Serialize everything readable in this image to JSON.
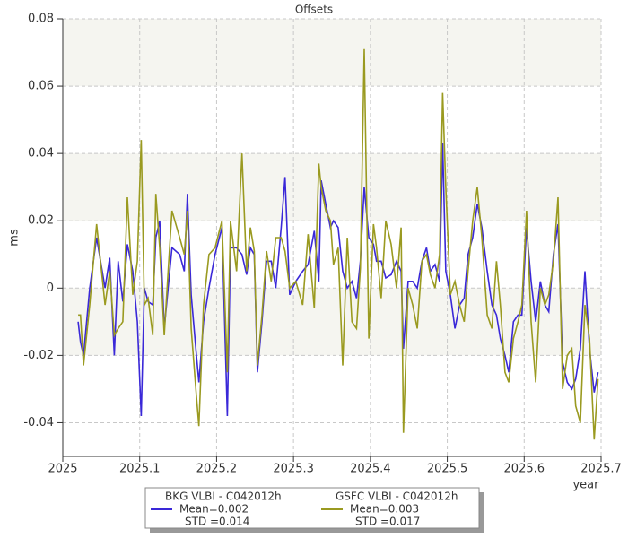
{
  "chart_data": {
    "type": "line",
    "title": "Offsets",
    "y_label": "ms",
    "x_label": "year",
    "xlim": [
      2025,
      2025.7
    ],
    "xticks": [
      2025,
      2025.1,
      2025.2,
      2025.3,
      2025.4,
      2025.5,
      2025.6,
      2025.7
    ],
    "ylim": [
      -0.05,
      0.08
    ],
    "yticks": [
      -0.04,
      -0.02,
      0,
      0.02,
      0.04,
      0.06,
      0.08
    ],
    "grid": true,
    "x": [
      2025.02,
      2025.023,
      2025.027,
      2025.035,
      2025.044,
      2025.055,
      2025.061,
      2025.067,
      2025.072,
      2025.078,
      2025.084,
      2025.091,
      2025.097,
      2025.102,
      2025.106,
      2025.111,
      2025.117,
      2025.121,
      2025.126,
      2025.132,
      2025.137,
      2025.142,
      2025.152,
      2025.158,
      2025.162,
      2025.167,
      2025.173,
      2025.177,
      2025.183,
      2025.19,
      2025.198,
      2025.207,
      2025.214,
      2025.218,
      2025.226,
      2025.233,
      2025.239,
      2025.244,
      2025.249,
      2025.253,
      2025.259,
      2025.265,
      2025.271,
      2025.277,
      2025.284,
      2025.289,
      2025.295,
      2025.303,
      2025.312,
      2025.319,
      2025.327,
      2025.333,
      2025.336,
      2025.342,
      2025.348,
      2025.352,
      2025.358,
      2025.364,
      2025.37,
      2025.376,
      2025.382,
      2025.387,
      2025.392,
      2025.398,
      2025.404,
      2025.408,
      2025.414,
      2025.42,
      2025.427,
      2025.434,
      2025.44,
      2025.443,
      2025.449,
      2025.455,
      2025.461,
      2025.467,
      2025.473,
      2025.478,
      2025.484,
      2025.49,
      2025.494,
      2025.498,
      2025.504,
      2025.51,
      2025.516,
      2025.522,
      2025.527,
      2025.533,
      2025.539,
      2025.545,
      2025.552,
      2025.558,
      2025.564,
      2025.569,
      2025.575,
      2025.58,
      2025.586,
      2025.592,
      2025.597,
      2025.603,
      2025.609,
      2025.615,
      2025.621,
      2025.627,
      2025.632,
      2025.638,
      2025.644,
      2025.65,
      2025.656,
      2025.662,
      2025.667,
      2025.673,
      2025.679,
      2025.685,
      2025.691,
      2025.696
    ],
    "series": [
      {
        "name": "BKG VLBI - C042012h",
        "stats": [
          "Mean=0.002",
          "STD =0.014"
        ],
        "color": "#3a28d8",
        "values": [
          -0.01,
          -0.016,
          -0.02,
          0.0,
          0.015,
          0.0,
          0.009,
          -0.02,
          0.008,
          -0.004,
          0.013,
          0.005,
          -0.01,
          -0.038,
          0.0,
          -0.004,
          -0.005,
          0.015,
          0.02,
          -0.012,
          0.0,
          0.012,
          0.01,
          0.005,
          0.028,
          -0.002,
          -0.018,
          -0.028,
          -0.01,
          0.0,
          0.01,
          0.018,
          -0.038,
          0.012,
          0.012,
          0.01,
          0.004,
          0.012,
          0.01,
          -0.025,
          -0.01,
          0.008,
          0.008,
          0.0,
          0.018,
          0.033,
          -0.002,
          0.002,
          0.005,
          0.007,
          0.017,
          0.002,
          0.032,
          0.025,
          0.018,
          0.02,
          0.018,
          0.005,
          0.0,
          0.002,
          -0.003,
          0.008,
          0.03,
          0.015,
          0.013,
          0.008,
          0.008,
          0.003,
          0.004,
          0.008,
          0.005,
          -0.018,
          0.002,
          0.002,
          0.0,
          0.008,
          0.012,
          0.005,
          0.007,
          0.002,
          0.043,
          0.005,
          -0.002,
          -0.012,
          -0.005,
          -0.003,
          0.01,
          0.015,
          0.025,
          0.018,
          0.005,
          -0.005,
          -0.008,
          -0.015,
          -0.02,
          -0.025,
          -0.01,
          -0.008,
          -0.008,
          0.018,
          0.002,
          -0.01,
          0.002,
          -0.005,
          -0.007,
          0.01,
          0.019,
          -0.022,
          -0.028,
          -0.03,
          -0.027,
          -0.018,
          0.005,
          -0.018,
          -0.031,
          -0.025
        ]
      },
      {
        "name": "GSFC VLBI - C042012h",
        "stats": [
          "Mean=0.003",
          "STD =0.017"
        ],
        "color": "#9a9a20",
        "values": [
          -0.008,
          -0.008,
          -0.023,
          -0.005,
          0.019,
          -0.005,
          0.005,
          -0.014,
          -0.012,
          -0.01,
          0.027,
          -0.002,
          0.008,
          0.044,
          -0.005,
          -0.003,
          -0.014,
          0.028,
          0.012,
          -0.014,
          0.005,
          0.023,
          0.015,
          0.01,
          0.023,
          -0.012,
          -0.03,
          -0.041,
          -0.005,
          0.01,
          0.012,
          0.02,
          -0.025,
          0.02,
          0.005,
          0.04,
          0.005,
          0.018,
          0.011,
          -0.023,
          -0.008,
          0.011,
          0.002,
          0.015,
          0.015,
          0.011,
          0.0,
          0.002,
          -0.005,
          0.016,
          -0.006,
          0.037,
          0.03,
          0.023,
          0.02,
          0.007,
          0.012,
          -0.023,
          0.015,
          -0.01,
          -0.012,
          0.006,
          0.071,
          -0.015,
          0.019,
          0.012,
          -0.003,
          0.02,
          0.013,
          0.0,
          0.018,
          -0.043,
          0.0,
          -0.005,
          -0.012,
          0.008,
          0.01,
          0.004,
          0.0,
          0.01,
          0.058,
          0.03,
          -0.002,
          0.002,
          -0.005,
          -0.01,
          0.005,
          0.02,
          0.03,
          0.015,
          -0.008,
          -0.012,
          0.008,
          -0.005,
          -0.025,
          -0.028,
          -0.015,
          -0.01,
          -0.005,
          0.023,
          -0.01,
          -0.028,
          0.0,
          -0.005,
          -0.002,
          0.008,
          0.027,
          -0.03,
          -0.02,
          -0.018,
          -0.035,
          -0.04,
          -0.005,
          -0.015,
          -0.045,
          -0.027
        ]
      }
    ]
  }
}
